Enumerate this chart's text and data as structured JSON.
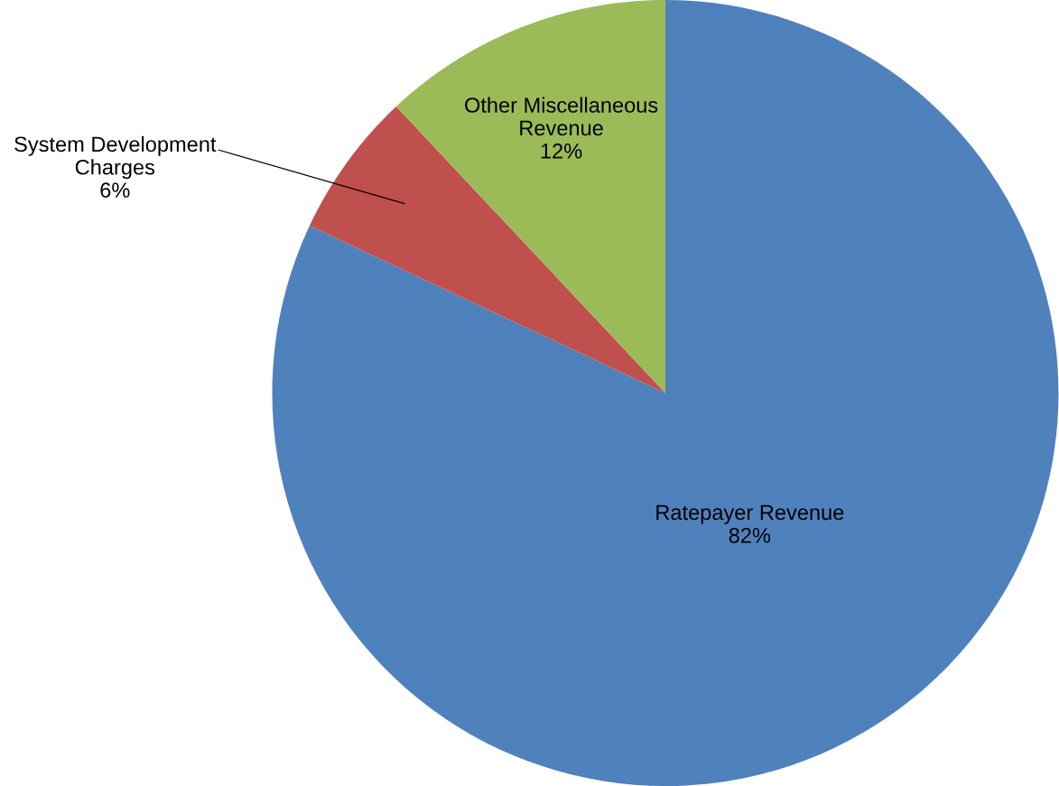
{
  "chart_data": {
    "type": "pie",
    "categories": [
      "Ratepayer Revenue",
      "System Development\nCharges",
      "Other Miscellaneous\nRevenue"
    ],
    "values": [
      82,
      6,
      12
    ],
    "value_labels": [
      "82%",
      "6%",
      "12%"
    ],
    "colors": [
      "#4f81bd",
      "#c0504d",
      "#9bbb59"
    ],
    "legend": false
  }
}
